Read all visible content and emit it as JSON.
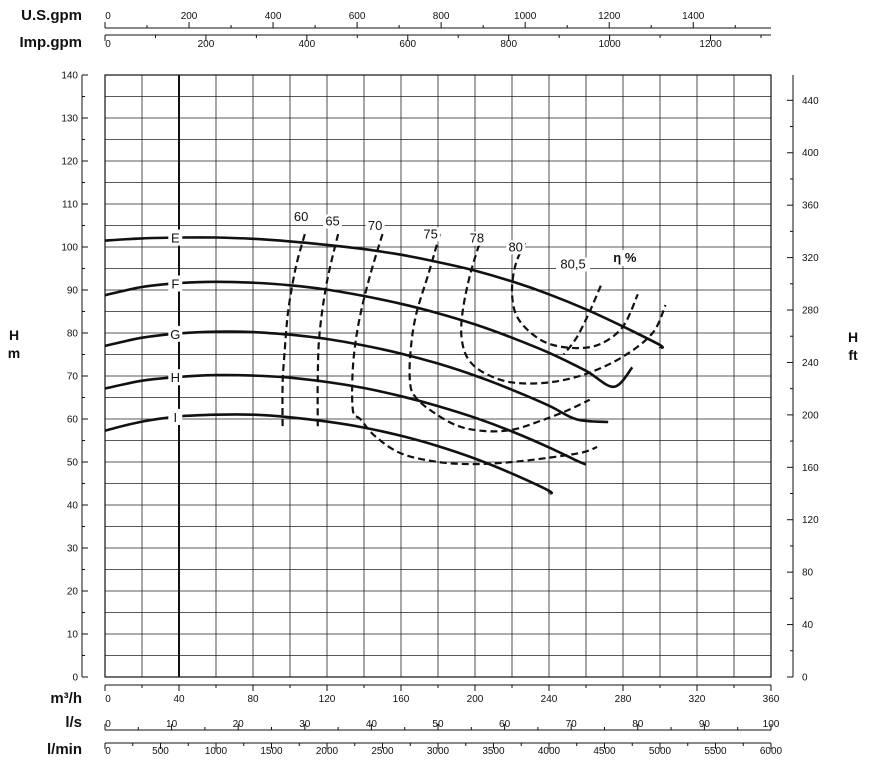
{
  "chart_data": {
    "type": "line",
    "title": "",
    "x_axis": {
      "unit": "m³/h",
      "range": [
        0,
        360
      ],
      "ticks": [
        0,
        40,
        80,
        120,
        160,
        200,
        240,
        280,
        320,
        360
      ],
      "minor_step": 20
    },
    "secondary_x_axes": [
      {
        "unit": "U.S.gpm",
        "position": "top",
        "factor": 4.4029,
        "ticks": [
          0,
          200,
          400,
          600,
          800,
          1000,
          1200,
          1400
        ],
        "minor_step": 100
      },
      {
        "unit": "Imp.gpm",
        "position": "top",
        "factor": 3.6662,
        "ticks": [
          0,
          200,
          400,
          600,
          800,
          1000,
          1200
        ],
        "minor_step": 100
      },
      {
        "unit": "l/s",
        "position": "bottom",
        "factor": 0.27778,
        "ticks": [
          0,
          10,
          20,
          30,
          40,
          50,
          60,
          70,
          80,
          90,
          100
        ],
        "minor_step": 5
      },
      {
        "unit": "l/min",
        "position": "bottom",
        "factor": 16.6667,
        "ticks": [
          0,
          500,
          1000,
          1500,
          2000,
          2500,
          3000,
          3500,
          4000,
          4500,
          5000,
          5500,
          6000
        ],
        "minor_step": 250
      }
    ],
    "y_axis": {
      "unit_line1": "H",
      "unit_line2": "m",
      "range": [
        0,
        140
      ],
      "ticks": [
        0,
        10,
        20,
        30,
        40,
        50,
        60,
        70,
        80,
        90,
        100,
        110,
        120,
        130,
        140
      ],
      "minor_step": 5
    },
    "secondary_y_axis": {
      "unit_line1": "H",
      "unit_line2": "ft",
      "factor": 3.28084,
      "ticks": [
        0,
        40,
        80,
        120,
        160,
        200,
        240,
        280,
        320,
        360,
        400,
        440
      ],
      "minor_step": 20
    },
    "grid": true,
    "reference_line_x": 40,
    "series": [
      {
        "name": "E",
        "label_x": 38,
        "points": [
          [
            0,
            101.5
          ],
          [
            20,
            102.0
          ],
          [
            40,
            102.2
          ],
          [
            60,
            102.2
          ],
          [
            80,
            101.9
          ],
          [
            100,
            101.3
          ],
          [
            120,
            100.5
          ],
          [
            140,
            99.5
          ],
          [
            160,
            98.2
          ],
          [
            180,
            96.5
          ],
          [
            200,
            94.5
          ],
          [
            220,
            92.0
          ],
          [
            240,
            89.0
          ],
          [
            260,
            85.5
          ],
          [
            280,
            81.5
          ],
          [
            300,
            77.2
          ],
          [
            300,
            76.5
          ]
        ]
      },
      {
        "name": "F",
        "label_x": 38,
        "points": [
          [
            0,
            88.8
          ],
          [
            20,
            90.7
          ],
          [
            40,
            91.6
          ],
          [
            60,
            91.9
          ],
          [
            80,
            91.7
          ],
          [
            100,
            91.1
          ],
          [
            120,
            90.1
          ],
          [
            140,
            88.6
          ],
          [
            160,
            86.8
          ],
          [
            180,
            84.6
          ],
          [
            200,
            82.0
          ],
          [
            220,
            78.9
          ],
          [
            240,
            75.4
          ],
          [
            260,
            71.2
          ],
          [
            275,
            67.5
          ],
          [
            285,
            72.0
          ]
        ]
      },
      {
        "name": "G",
        "label_x": 38,
        "points": [
          [
            0,
            77.0
          ],
          [
            20,
            78.9
          ],
          [
            40,
            79.9
          ],
          [
            60,
            80.3
          ],
          [
            80,
            80.2
          ],
          [
            100,
            79.6
          ],
          [
            120,
            78.6
          ],
          [
            140,
            77.1
          ],
          [
            160,
            75.2
          ],
          [
            180,
            72.9
          ],
          [
            200,
            70.1
          ],
          [
            220,
            66.8
          ],
          [
            240,
            63.1
          ],
          [
            255,
            59.9
          ],
          [
            272,
            59.3
          ]
        ]
      },
      {
        "name": "H",
        "label_x": 38,
        "points": [
          [
            0,
            67.1
          ],
          [
            20,
            68.9
          ],
          [
            40,
            69.8
          ],
          [
            60,
            70.2
          ],
          [
            80,
            70.1
          ],
          [
            100,
            69.6
          ],
          [
            120,
            68.6
          ],
          [
            140,
            67.2
          ],
          [
            160,
            65.3
          ],
          [
            180,
            63.0
          ],
          [
            200,
            60.3
          ],
          [
            220,
            57.1
          ],
          [
            240,
            53.4
          ],
          [
            255,
            50.3
          ],
          [
            260,
            49.4
          ]
        ]
      },
      {
        "name": "I",
        "label_x": 38,
        "points": [
          [
            0,
            57.3
          ],
          [
            20,
            59.4
          ],
          [
            40,
            60.6
          ],
          [
            60,
            61.0
          ],
          [
            80,
            61.0
          ],
          [
            100,
            60.4
          ],
          [
            120,
            59.4
          ],
          [
            140,
            58.0
          ],
          [
            160,
            56.1
          ],
          [
            180,
            53.7
          ],
          [
            200,
            50.8
          ],
          [
            220,
            47.3
          ],
          [
            240,
            43.3
          ],
          [
            240,
            42.7
          ]
        ]
      }
    ],
    "efficiency_curves": [
      {
        "label": "60",
        "label_pos": [
          106,
          106
        ],
        "points": [
          [
            108,
            103
          ],
          [
            103,
            95
          ],
          [
            99,
            85
          ],
          [
            97,
            75
          ],
          [
            96,
            68
          ],
          [
            96,
            58
          ]
        ]
      },
      {
        "label": "65",
        "label_pos": [
          123,
          105
        ],
        "points": [
          [
            126,
            103
          ],
          [
            120,
            92
          ],
          [
            116,
            80
          ],
          [
            115,
            70
          ],
          [
            115,
            58
          ]
        ]
      },
      {
        "label": "70",
        "label_pos": [
          146,
          104
        ],
        "points": [
          [
            150,
            103
          ],
          [
            143,
            93
          ],
          [
            137,
            82
          ],
          [
            134,
            72
          ],
          [
            134,
            62
          ],
          [
            138,
            60
          ],
          [
            146,
            56
          ],
          [
            160,
            52
          ],
          [
            180,
            50
          ],
          [
            200,
            49.5
          ],
          [
            220,
            50.0
          ],
          [
            240,
            51.0
          ],
          [
            258,
            52.2
          ],
          [
            266,
            53.5
          ]
        ]
      },
      {
        "label": "75",
        "label_pos": [
          176,
          102
        ],
        "points": [
          [
            181,
            103
          ],
          [
            175,
            94
          ],
          [
            168,
            84
          ],
          [
            165,
            75
          ],
          [
            165,
            68
          ],
          [
            168,
            65
          ],
          [
            176,
            62
          ],
          [
            190,
            58.5
          ],
          [
            205,
            57.2
          ],
          [
            220,
            57.5
          ],
          [
            235,
            59.5
          ],
          [
            250,
            62.0
          ],
          [
            262,
            64.5
          ]
        ]
      },
      {
        "label": "78",
        "label_pos": [
          201,
          101
        ],
        "points": [
          [
            204,
            103
          ],
          [
            197,
            93
          ],
          [
            193,
            84
          ],
          [
            193,
            78
          ],
          [
            197,
            73.5
          ],
          [
            206,
            70.5
          ],
          [
            220,
            68.5
          ],
          [
            240,
            68.5
          ],
          [
            260,
            70.5
          ],
          [
            280,
            74.5
          ],
          [
            296,
            80.0
          ],
          [
            303,
            86.5
          ]
        ]
      },
      {
        "label": "80",
        "label_pos": [
          222,
          99
        ],
        "points": [
          [
            227,
            101
          ],
          [
            222,
            96
          ],
          [
            220,
            90
          ],
          [
            222,
            84.5
          ],
          [
            229,
            80.5
          ],
          [
            240,
            77.5
          ],
          [
            255,
            76.5
          ],
          [
            268,
            77.5
          ],
          [
            280,
            81.5
          ],
          [
            288,
            89.0
          ]
        ]
      },
      {
        "label": "80,5",
        "label_pos": [
          253,
          95
        ],
        "points": [
          [
            268,
            91
          ],
          [
            262,
            85
          ],
          [
            255,
            79
          ],
          [
            248,
            75
          ]
        ]
      }
    ],
    "efficiency_label": "η %",
    "efficiency_label_pos": [
      281,
      96.5
    ]
  }
}
